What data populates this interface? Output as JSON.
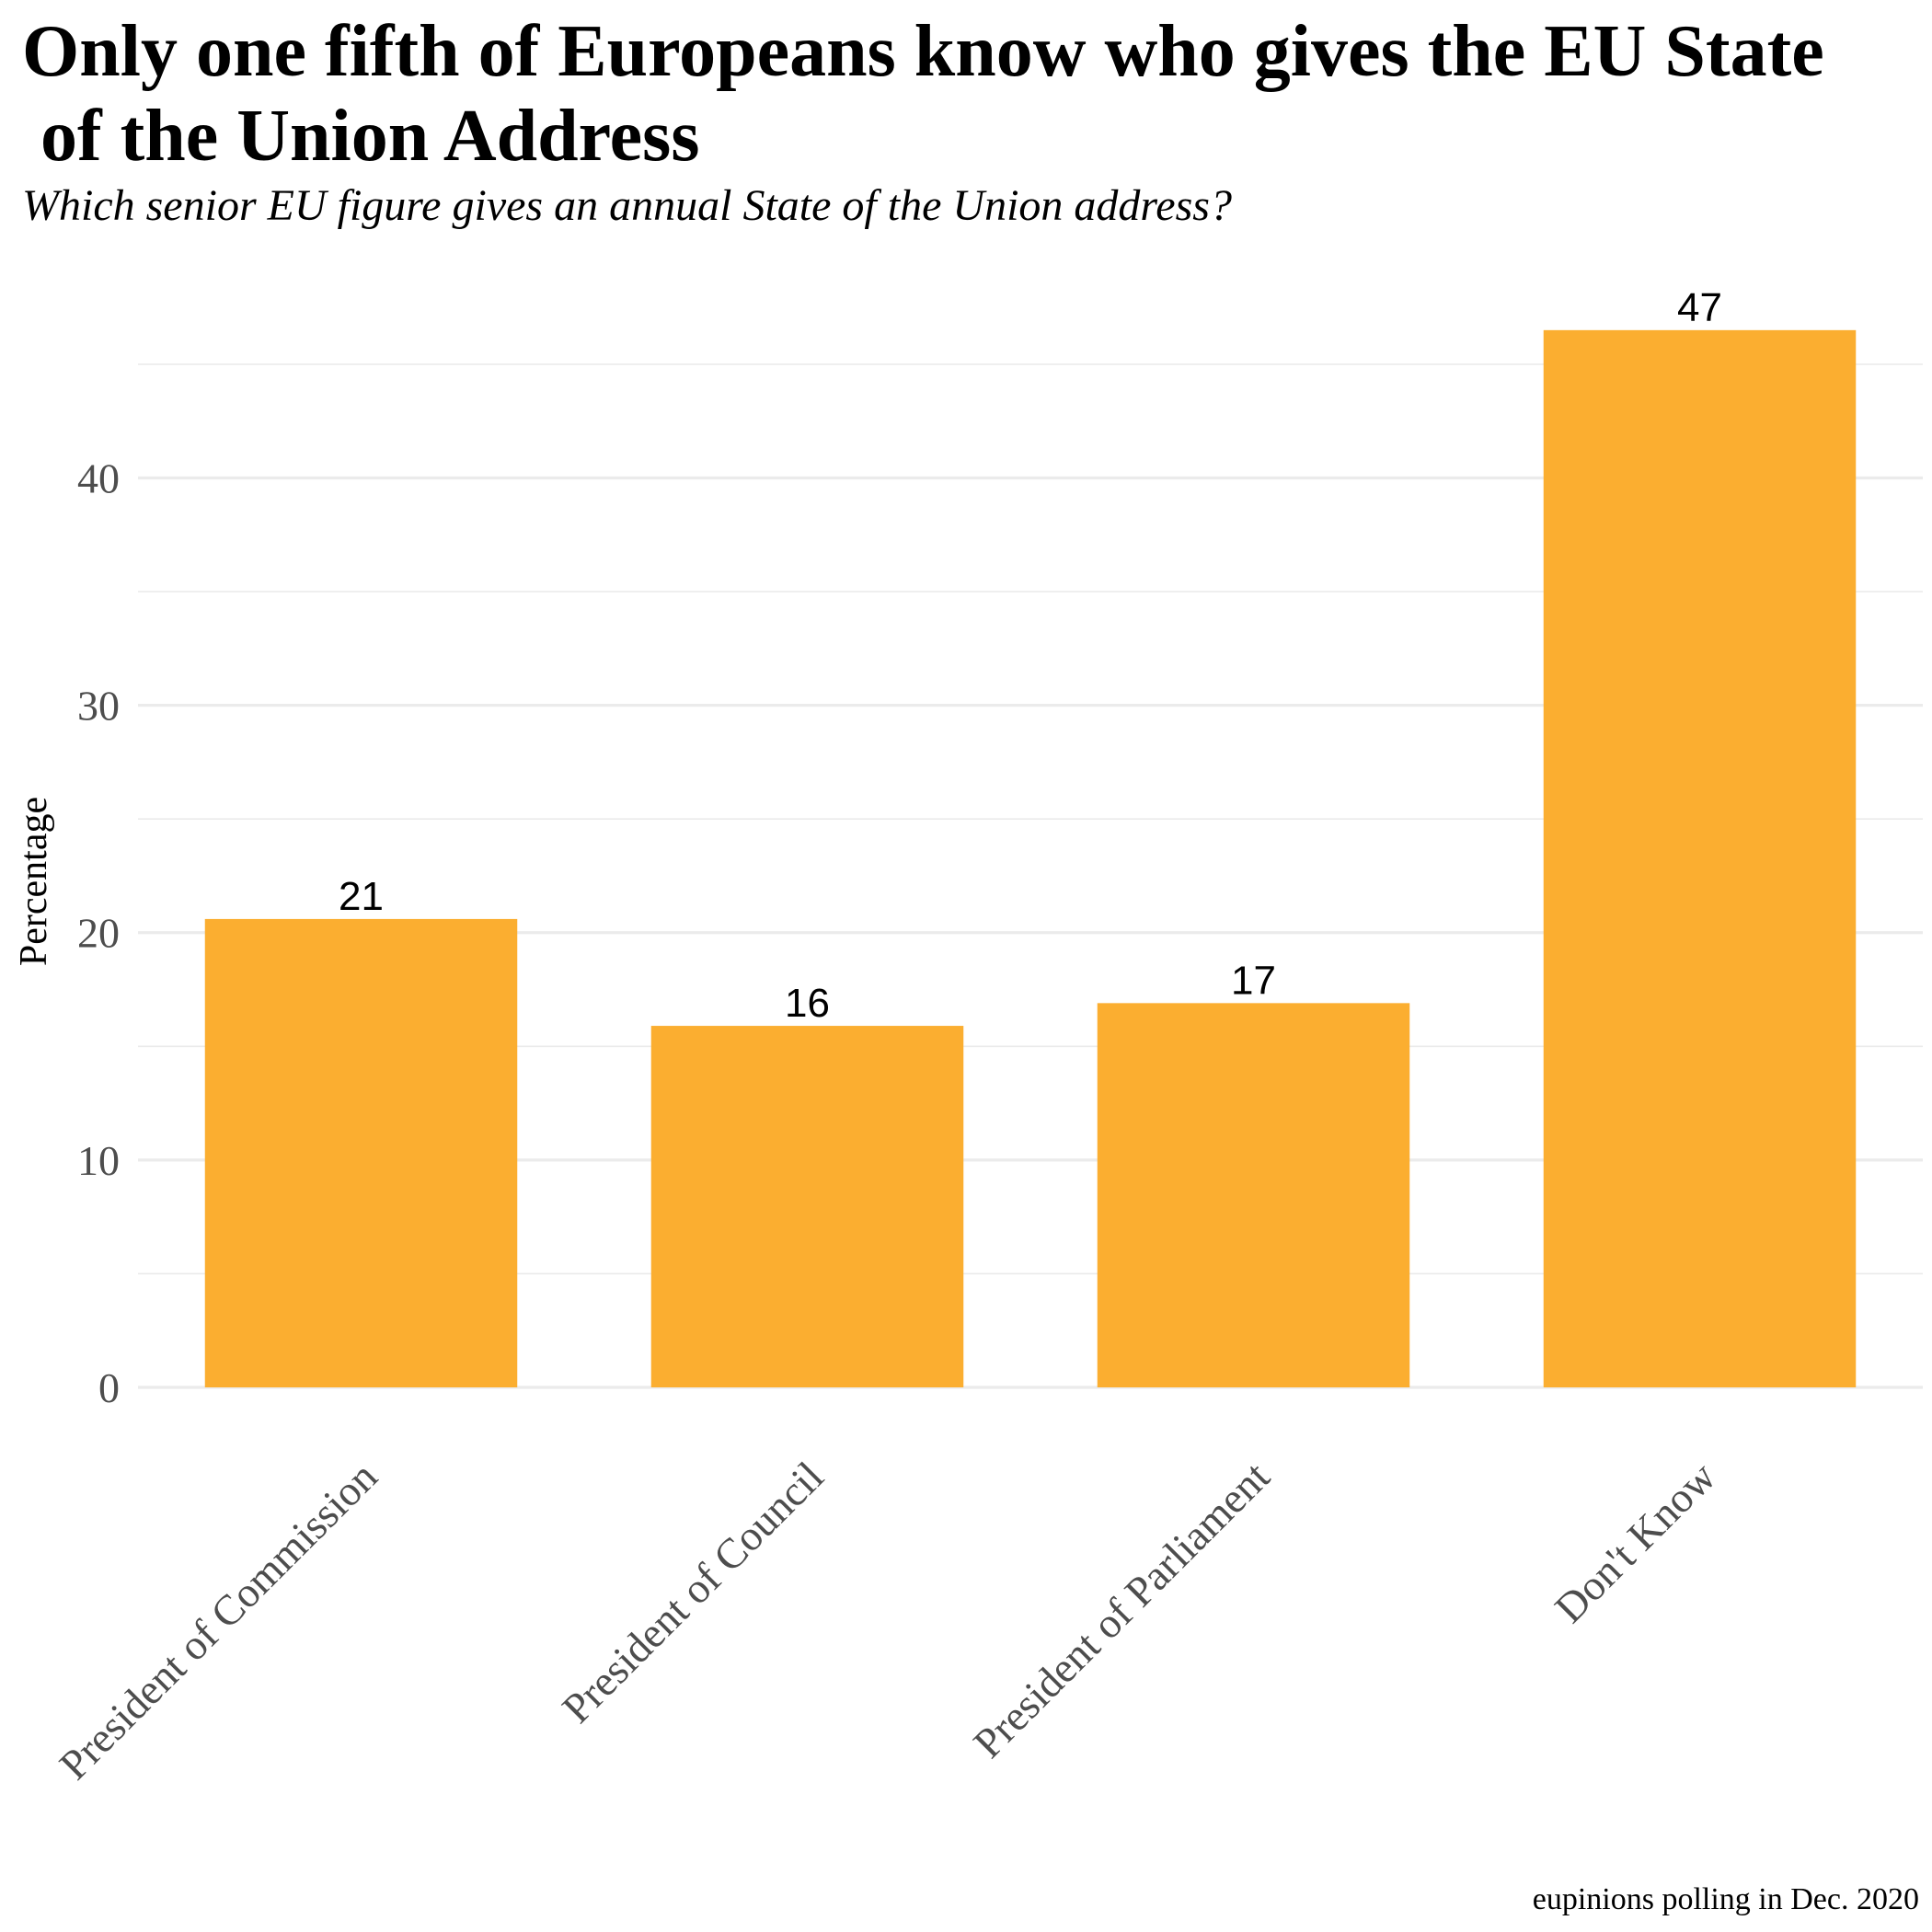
{
  "chart_data": {
    "type": "bar",
    "title": "Only one fifth of Europeans know who gives the EU State\n of the Union Address",
    "subtitle": "Which senior EU figure gives an annual State of the Union address?",
    "caption": "eupinions polling in Dec. 2020",
    "xlabel": "",
    "ylabel": "Percentage",
    "categories": [
      "President of Commission",
      "President of Council",
      "President of Parliament",
      "Don't Know"
    ],
    "values": [
      20.6,
      15.9,
      16.9,
      46.5
    ],
    "data_labels": [
      "21",
      "16",
      "17",
      "47"
    ],
    "yticks": [
      0,
      10,
      20,
      30,
      40
    ],
    "ylim": [
      0,
      48.8
    ],
    "grid": true,
    "bar_color": "#fbae30",
    "legend": "none"
  }
}
